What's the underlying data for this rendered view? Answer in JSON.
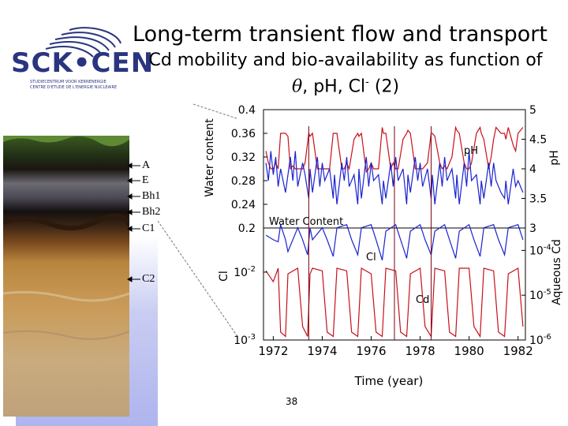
{
  "slide": {
    "title": "Long-term transient flow and transport",
    "subtitle_line1": "Cd mobility and bio-availability as function of",
    "subtitle_theta": "θ",
    "subtitle_mid": ", pH, Cl",
    "subtitle_sup": "-",
    "subtitle_end": " (2)",
    "page_number": "38"
  },
  "logo": {
    "text": "SCK•CEN",
    "sub1": "STUDIECENTRUM VOOR KERNENERGIE",
    "sub2": "CENTRE D'ETUDE DE L'ENERGIE NUCLEAIRE"
  },
  "soil_horizons": [
    "A",
    "E",
    "Bh1",
    "Bh2",
    "C1",
    "C2"
  ],
  "colors": {
    "ph_cd_series": "#c8101a",
    "wc_cl_series": "#1a22d0",
    "dark_red_marker": "#7a0010"
  },
  "chart_data": [
    {
      "type": "line",
      "panel": "upper",
      "ylabel_left": "Water content",
      "ylabel_right": "pH",
      "ylim_left": [
        0.2,
        0.4
      ],
      "yticks_left": [
        "0.4",
        "0.36",
        "0.32",
        "0.28",
        "0.24",
        "0.2"
      ],
      "ylim_right": [
        3,
        5
      ],
      "yticks_right": [
        "5",
        "4.5",
        "4",
        "3.5",
        "3"
      ],
      "series": [
        {
          "name": "pH",
          "axis": "right",
          "x": [
            1971.7,
            1971.8,
            1971.9,
            1972.0,
            1972.1,
            1972.2,
            1972.3,
            1972.5,
            1972.6,
            1972.7,
            1972.8,
            1972.9,
            1973.0,
            1973.2,
            1973.3,
            1973.45,
            1973.5,
            1973.6,
            1973.8,
            1973.9,
            1974.0,
            1974.1,
            1974.3,
            1974.45,
            1974.5,
            1974.6,
            1974.8,
            1974.9,
            1975.0,
            1975.1,
            1975.3,
            1975.45,
            1975.5,
            1975.6,
            1975.8,
            1975.9,
            1976.0,
            1976.1,
            1976.3,
            1976.45,
            1976.5,
            1976.6,
            1976.8,
            1976.9,
            1977.0,
            1977.1,
            1977.3,
            1977.45,
            1977.5,
            1977.6,
            1977.8,
            1977.9,
            1978.0,
            1978.1,
            1978.3,
            1978.45,
            1978.5,
            1978.6,
            1978.8,
            1978.9,
            1979.0,
            1979.1,
            1979.3,
            1979.45,
            1979.5,
            1979.6,
            1979.8,
            1979.9,
            1980.0,
            1980.1,
            1980.3,
            1980.45,
            1980.5,
            1980.6,
            1980.8,
            1980.9,
            1981.0,
            1981.1,
            1981.3,
            1981.45,
            1981.5,
            1981.6,
            1981.8,
            1981.9,
            1982.0,
            1982.2
          ],
          "values": [
            4.3,
            4.1,
            4.0,
            4.0,
            4.1,
            4.0,
            4.6,
            4.6,
            4.55,
            4.0,
            4.05,
            4.0,
            4.0,
            4.0,
            4.1,
            4.6,
            4.55,
            4.6,
            4.0,
            4.0,
            4.0,
            4.0,
            4.0,
            4.6,
            4.6,
            4.6,
            4.0,
            4.0,
            4.1,
            4.0,
            4.5,
            4.6,
            4.55,
            4.6,
            3.95,
            4.0,
            4.1,
            4.0,
            4.0,
            4.7,
            4.6,
            4.6,
            4.0,
            4.1,
            4.0,
            4.0,
            4.5,
            4.6,
            4.65,
            4.6,
            4.0,
            4.0,
            4.0,
            4.0,
            4.1,
            4.6,
            4.6,
            4.55,
            4.1,
            4.0,
            4.05,
            4.0,
            4.2,
            4.7,
            4.65,
            4.6,
            4.1,
            4.0,
            4.0,
            4.1,
            4.6,
            4.7,
            4.6,
            4.5,
            4.0,
            4.2,
            4.5,
            4.7,
            4.6,
            4.6,
            4.5,
            4.7,
            4.4,
            4.3,
            4.6,
            4.7
          ]
        },
        {
          "name": "Water Content",
          "axis": "left",
          "x": [
            1971.7,
            1971.8,
            1971.9,
            1972.0,
            1972.1,
            1972.2,
            1972.3,
            1972.5,
            1972.6,
            1972.7,
            1972.8,
            1972.9,
            1973.0,
            1973.2,
            1973.3,
            1973.45,
            1973.5,
            1973.6,
            1973.8,
            1973.9,
            1974.0,
            1974.1,
            1974.3,
            1974.45,
            1974.5,
            1974.6,
            1974.8,
            1974.9,
            1975.0,
            1975.1,
            1975.3,
            1975.45,
            1975.5,
            1975.6,
            1975.8,
            1975.9,
            1976.0,
            1976.1,
            1976.3,
            1976.45,
            1976.5,
            1976.6,
            1976.8,
            1976.9,
            1977.0,
            1977.1,
            1977.3,
            1977.45,
            1977.5,
            1977.6,
            1977.8,
            1977.9,
            1978.0,
            1978.1,
            1978.3,
            1978.45,
            1978.5,
            1978.6,
            1978.8,
            1978.9,
            1979.0,
            1979.1,
            1979.3,
            1979.45,
            1979.5,
            1979.6,
            1979.8,
            1979.9,
            1980.0,
            1980.1,
            1980.3,
            1980.45,
            1980.5,
            1980.6,
            1980.8,
            1980.9,
            1981.0,
            1981.1,
            1981.3,
            1981.45,
            1981.5,
            1981.6,
            1981.8,
            1981.9,
            1982.0,
            1982.2
          ],
          "values": [
            0.31,
            0.28,
            0.33,
            0.29,
            0.32,
            0.27,
            0.3,
            0.26,
            0.29,
            0.32,
            0.28,
            0.33,
            0.27,
            0.31,
            0.29,
            0.25,
            0.3,
            0.26,
            0.32,
            0.27,
            0.31,
            0.28,
            0.3,
            0.25,
            0.29,
            0.24,
            0.31,
            0.28,
            0.32,
            0.27,
            0.29,
            0.24,
            0.3,
            0.25,
            0.32,
            0.27,
            0.31,
            0.28,
            0.29,
            0.24,
            0.28,
            0.25,
            0.31,
            0.27,
            0.32,
            0.28,
            0.3,
            0.24,
            0.29,
            0.26,
            0.32,
            0.28,
            0.31,
            0.27,
            0.3,
            0.25,
            0.29,
            0.24,
            0.31,
            0.27,
            0.32,
            0.28,
            0.3,
            0.25,
            0.29,
            0.24,
            0.31,
            0.27,
            0.33,
            0.28,
            0.29,
            0.24,
            0.28,
            0.25,
            0.31,
            0.27,
            0.31,
            0.28,
            0.26,
            0.25,
            0.28,
            0.24,
            0.3,
            0.27,
            0.28,
            0.26
          ]
        }
      ],
      "annotations": [
        "pH",
        "Water Content"
      ]
    },
    {
      "type": "line",
      "panel": "lower",
      "xlabel": "Time (year)",
      "ylabel_left": "Cl",
      "ylabel_right": "Aqueous Cd",
      "xlim": [
        1971.6,
        1982.3
      ],
      "xticks": [
        "1972",
        "1974",
        "1976",
        "1978",
        "1980",
        "1982"
      ],
      "yscale": "log",
      "yticks_left": [
        "10-2",
        "10-3"
      ],
      "yticks_right": [
        "10-4",
        "10-5",
        "10-6"
      ],
      "series": [
        {
          "name": "Cl",
          "axis": "left",
          "x": [
            1971.7,
            1972.0,
            1972.2,
            1972.3,
            1972.5,
            1972.6,
            1973.0,
            1973.2,
            1973.4,
            1973.5,
            1973.6,
            1974.0,
            1974.2,
            1974.45,
            1974.6,
            1975.0,
            1975.2,
            1975.45,
            1975.6,
            1976.0,
            1976.2,
            1976.45,
            1976.6,
            1977.0,
            1977.2,
            1977.45,
            1977.6,
            1978.0,
            1978.2,
            1978.45,
            1978.6,
            1979.0,
            1979.2,
            1979.45,
            1979.6,
            1980.0,
            1980.2,
            1980.45,
            1980.6,
            1981.0,
            1981.2,
            1981.45,
            1981.6,
            1982.0,
            1982.2
          ],
          "values": [
            0.035,
            0.03,
            0.028,
            0.05,
            0.03,
            0.02,
            0.045,
            0.03,
            0.018,
            0.045,
            0.03,
            0.045,
            0.03,
            0.017,
            0.045,
            0.05,
            0.03,
            0.018,
            0.045,
            0.05,
            0.03,
            0.015,
            0.04,
            0.05,
            0.03,
            0.016,
            0.04,
            0.05,
            0.03,
            0.018,
            0.04,
            0.05,
            0.03,
            0.016,
            0.04,
            0.05,
            0.03,
            0.017,
            0.045,
            0.05,
            0.03,
            0.018,
            0.045,
            0.05,
            0.03
          ]
        },
        {
          "name": "Cd",
          "axis": "right",
          "x": [
            1971.7,
            1972.0,
            1972.2,
            1972.3,
            1972.5,
            1972.6,
            1973.0,
            1973.2,
            1973.4,
            1973.5,
            1973.6,
            1974.0,
            1974.2,
            1974.45,
            1974.6,
            1975.0,
            1975.2,
            1975.45,
            1975.6,
            1976.0,
            1976.2,
            1976.45,
            1976.6,
            1977.0,
            1977.2,
            1977.45,
            1977.6,
            1978.0,
            1978.2,
            1978.45,
            1978.6,
            1979.0,
            1979.2,
            1979.45,
            1979.6,
            1980.0,
            1980.2,
            1980.45,
            1980.6,
            1981.0,
            1981.2,
            1981.45,
            1981.6,
            1982.0,
            1982.2
          ],
          "values": [
            3.5e-05,
            2e-05,
            4e-05,
            1.5e-06,
            1.2e-06,
            3e-05,
            4e-05,
            2e-06,
            1.2e-06,
            3e-05,
            4e-05,
            3.5e-05,
            1.5e-06,
            1.2e-06,
            4e-05,
            3.5e-05,
            1.5e-06,
            1.2e-06,
            4e-05,
            3e-05,
            1.5e-06,
            1.2e-06,
            4e-05,
            3.5e-05,
            1.5e-06,
            1.2e-06,
            3e-05,
            4e-05,
            2e-06,
            1.2e-06,
            4e-05,
            3.5e-05,
            1.5e-06,
            1.2e-06,
            4e-05,
            4e-05,
            2e-06,
            1.2e-06,
            4e-05,
            3.5e-05,
            1.5e-06,
            1.2e-06,
            3e-05,
            4e-05,
            2e-06
          ]
        }
      ],
      "annotations": [
        "Cl",
        "Cd"
      ]
    }
  ]
}
